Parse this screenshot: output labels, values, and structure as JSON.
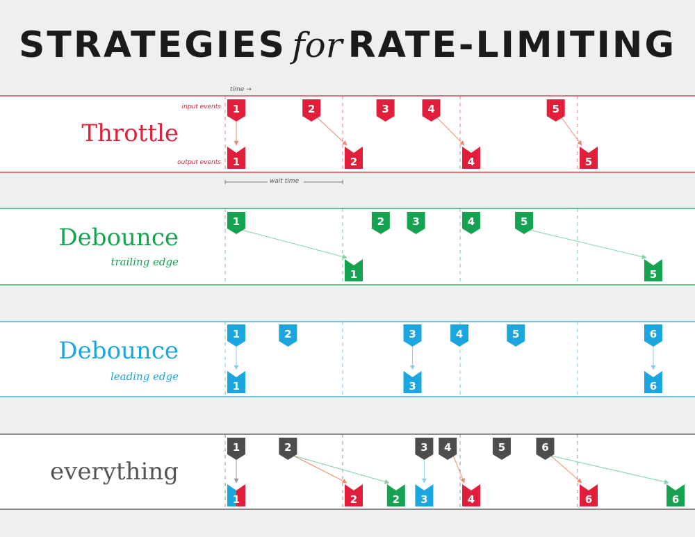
{
  "title": {
    "main_left": "STRATEGIES",
    "for": "for",
    "main_right": "RATE-LIMITING"
  },
  "notes": {
    "time": "time",
    "time_arrow": "→",
    "input_events": "input events",
    "output_events": "output events",
    "wait_time": "wait time"
  },
  "colors": {
    "red": "#e21f3b",
    "green": "#16a351",
    "blue": "#1ba6e0",
    "gray": "#4d4d4d",
    "arrow_red": "#ef8a72",
    "arrow_green": "#7fd3a5",
    "arrow_blue": "#88cff0",
    "arrow_gray": "#9a9a9a"
  },
  "wait_times": [
    0,
    1,
    2,
    3
  ],
  "sections": [
    {
      "id": "throttle",
      "label": "Throttle",
      "sublabel": "",
      "color": "red",
      "label_color": "#e21f3b",
      "inputs": [
        {
          "n": "1",
          "t": 0
        },
        {
          "n": "2",
          "t": 0.64
        },
        {
          "n": "3",
          "t": 1.27
        },
        {
          "n": "4",
          "t": 1.66
        },
        {
          "n": "5",
          "t": 2.72
        }
      ],
      "outputs": [
        {
          "n": "1",
          "t": 0
        },
        {
          "n": "2",
          "t": 1
        },
        {
          "n": "4",
          "t": 2
        },
        {
          "n": "5",
          "t": 3
        }
      ],
      "arrows": [
        {
          "from": 0,
          "to": 0,
          "color": "arrow_red"
        },
        {
          "from": 1,
          "to": 1,
          "color": "arrow_red"
        },
        {
          "from": 3,
          "to": 2,
          "color": "arrow_red"
        },
        {
          "from": 4,
          "to": 3,
          "color": "arrow_red"
        }
      ]
    },
    {
      "id": "debounce-trailing",
      "label": "Debounce",
      "sublabel": "trailing edge",
      "color": "green",
      "label_color": "#16a351",
      "inputs": [
        {
          "n": "1",
          "t": 0
        },
        {
          "n": "2",
          "t": 1.23
        },
        {
          "n": "3",
          "t": 1.53
        },
        {
          "n": "4",
          "t": 2.0
        },
        {
          "n": "5",
          "t": 2.45
        }
      ],
      "outputs": [
        {
          "n": "1",
          "t": 1.0
        },
        {
          "n": "5",
          "t": 3.55
        }
      ],
      "arrows": [
        {
          "from": 0,
          "to": 0,
          "color": "arrow_green"
        },
        {
          "from": 4,
          "to": 1,
          "color": "arrow_green"
        }
      ]
    },
    {
      "id": "debounce-leading",
      "label": "Debounce",
      "sublabel": "leading edge",
      "color": "blue",
      "label_color": "#1ba6e0",
      "inputs": [
        {
          "n": "1",
          "t": 0
        },
        {
          "n": "2",
          "t": 0.44
        },
        {
          "n": "3",
          "t": 1.5
        },
        {
          "n": "4",
          "t": 1.9
        },
        {
          "n": "5",
          "t": 2.38
        },
        {
          "n": "6",
          "t": 3.55
        }
      ],
      "outputs": [
        {
          "n": "1",
          "t": 0
        },
        {
          "n": "3",
          "t": 1.5
        },
        {
          "n": "6",
          "t": 3.55
        }
      ],
      "arrows": [
        {
          "from": 0,
          "to": 0,
          "color": "arrow_blue"
        },
        {
          "from": 2,
          "to": 1,
          "color": "arrow_blue"
        },
        {
          "from": 5,
          "to": 2,
          "color": "arrow_blue"
        }
      ]
    },
    {
      "id": "everything",
      "label": "everything",
      "sublabel": "",
      "color": "gray",
      "label_color": "#555555",
      "inputs": [
        {
          "n": "1",
          "t": 0
        },
        {
          "n": "2",
          "t": 0.44
        },
        {
          "n": "3",
          "t": 1.6
        },
        {
          "n": "4",
          "t": 1.8
        },
        {
          "n": "5",
          "t": 2.26
        },
        {
          "n": "6",
          "t": 2.63
        }
      ],
      "outputs": [
        {
          "n": "1",
          "t": 0,
          "color": "blue",
          "split": "red"
        },
        {
          "n": "2",
          "t": 1.0,
          "color": "red"
        },
        {
          "n": "2",
          "t": 1.36,
          "color": "green"
        },
        {
          "n": "3",
          "t": 1.6,
          "color": "blue"
        },
        {
          "n": "4",
          "t": 2.0,
          "color": "red"
        },
        {
          "n": "6",
          "t": 3.0,
          "color": "red"
        },
        {
          "n": "6",
          "t": 3.74,
          "color": "green"
        }
      ],
      "arrows": [
        {
          "from": 0,
          "to": 0,
          "color": "arrow_gray"
        },
        {
          "from": 1,
          "to": 1,
          "color": "arrow_red"
        },
        {
          "from": 1,
          "to": 2,
          "color": "arrow_green"
        },
        {
          "from": 2,
          "to": 3,
          "color": "arrow_blue"
        },
        {
          "from": 3,
          "to": 4,
          "color": "arrow_red"
        },
        {
          "from": 5,
          "to": 5,
          "color": "arrow_red"
        },
        {
          "from": 5,
          "to": 6,
          "color": "arrow_green"
        }
      ]
    }
  ]
}
